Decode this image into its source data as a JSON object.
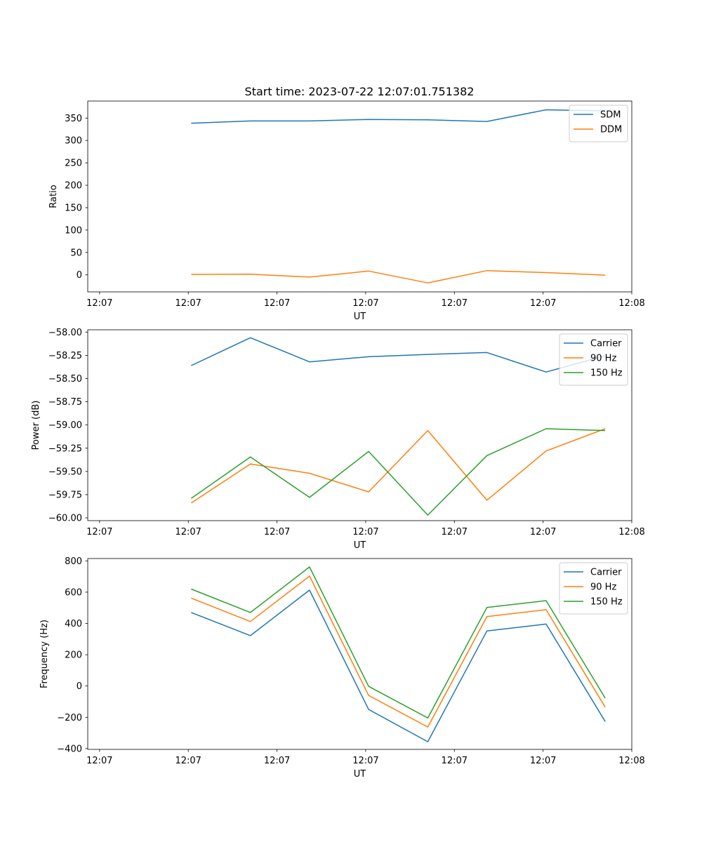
{
  "figure_title": "Start time: 2023-07-22 12:07:01.751382",
  "colors": {
    "blue": "#1f77b4",
    "orange": "#ff7f0e",
    "green": "#2ca02c"
  },
  "chart_data": [
    {
      "type": "line",
      "title": "Start time: 2023-07-22 12:07:01.751382",
      "xlabel": "UT",
      "ylabel": "Ratio",
      "x": [
        1,
        2,
        3,
        4,
        5,
        6,
        7,
        8
      ],
      "xlim": [
        -0.75,
        8.45
      ],
      "x_ticks": [
        -0.55,
        0.95,
        2.45,
        3.95,
        5.45,
        6.95,
        8.45
      ],
      "x_tick_labels": [
        "12:07",
        "12:07",
        "12:07",
        "12:07",
        "12:07",
        "12:07",
        "12:08"
      ],
      "ylim": [
        -38,
        388
      ],
      "y_ticks": [
        0,
        50,
        100,
        150,
        200,
        250,
        300,
        350
      ],
      "y_tick_labels": [
        "0",
        "50",
        "100",
        "150",
        "200",
        "250",
        "300",
        "350"
      ],
      "legend": "top-right",
      "series": [
        {
          "name": "SDM",
          "color": "#1f77b4",
          "values": [
            338.5,
            343.5,
            343.5,
            347,
            346,
            342.5,
            368.5,
            366
          ]
        },
        {
          "name": "DDM",
          "color": "#ff7f0e",
          "values": [
            1,
            1.5,
            -5,
            8.5,
            -18,
            9.5,
            5,
            -0.5
          ]
        }
      ]
    },
    {
      "type": "line",
      "xlabel": "UT",
      "ylabel": "Power (dB)",
      "x": [
        1,
        2,
        3,
        4,
        5,
        6,
        7,
        8
      ],
      "xlim": [
        -0.75,
        8.45
      ],
      "x_ticks": [
        -0.55,
        0.95,
        2.45,
        3.95,
        5.45,
        6.95,
        8.45
      ],
      "x_tick_labels": [
        "12:07",
        "12:07",
        "12:07",
        "12:07",
        "12:07",
        "12:07",
        "12:08"
      ],
      "ylim": [
        -60.03,
        -57.975
      ],
      "y_ticks": [
        -58.0,
        -58.25,
        -58.5,
        -58.75,
        -59.0,
        -59.25,
        -59.5,
        -59.75,
        -60.0
      ],
      "y_tick_labels": [
        "−58.00",
        "−58.25",
        "−58.50",
        "−58.75",
        "−59.00",
        "−59.25",
        "−59.50",
        "−59.75",
        "−60.00"
      ],
      "legend": "top-right",
      "series": [
        {
          "name": "Carrier",
          "color": "#1f77b4",
          "values": [
            -58.36,
            -58.06,
            -58.32,
            -58.265,
            -58.24,
            -58.22,
            -58.43,
            -58.255
          ]
        },
        {
          "name": "90 Hz",
          "color": "#ff7f0e",
          "values": [
            -59.84,
            -59.42,
            -59.52,
            -59.72,
            -59.06,
            -59.81,
            -59.28,
            -59.04
          ]
        },
        {
          "name": "150 Hz",
          "color": "#2ca02c",
          "values": [
            -59.79,
            -59.345,
            -59.78,
            -59.285,
            -59.97,
            -59.33,
            -59.04,
            -59.06
          ]
        }
      ]
    },
    {
      "type": "line",
      "xlabel": "UT",
      "ylabel": "Frequency (Hz)",
      "x": [
        1,
        2,
        3,
        4,
        5,
        6,
        7,
        8
      ],
      "xlim": [
        -0.75,
        8.45
      ],
      "x_ticks": [
        -0.55,
        0.95,
        2.45,
        3.95,
        5.45,
        6.95,
        8.45
      ],
      "x_tick_labels": [
        "12:07",
        "12:07",
        "12:07",
        "12:07",
        "12:07",
        "12:07",
        "12:08"
      ],
      "ylim": [
        -405,
        815
      ],
      "y_ticks": [
        -400,
        -200,
        0,
        200,
        400,
        600,
        800
      ],
      "y_tick_labels": [
        "−400",
        "−200",
        "0",
        "200",
        "400",
        "600",
        "800"
      ],
      "legend": "top-right",
      "series": [
        {
          "name": "Carrier",
          "color": "#1f77b4",
          "values": [
            470,
            322,
            613,
            -150,
            -356,
            352,
            396,
            -227
          ]
        },
        {
          "name": "90 Hz",
          "color": "#ff7f0e",
          "values": [
            562,
            412,
            703,
            -60,
            -262,
            444,
            488,
            -135
          ]
        },
        {
          "name": "150 Hz",
          "color": "#2ca02c",
          "values": [
            620,
            470,
            761,
            -2,
            -204,
            502,
            546,
            -77
          ]
        }
      ]
    }
  ]
}
